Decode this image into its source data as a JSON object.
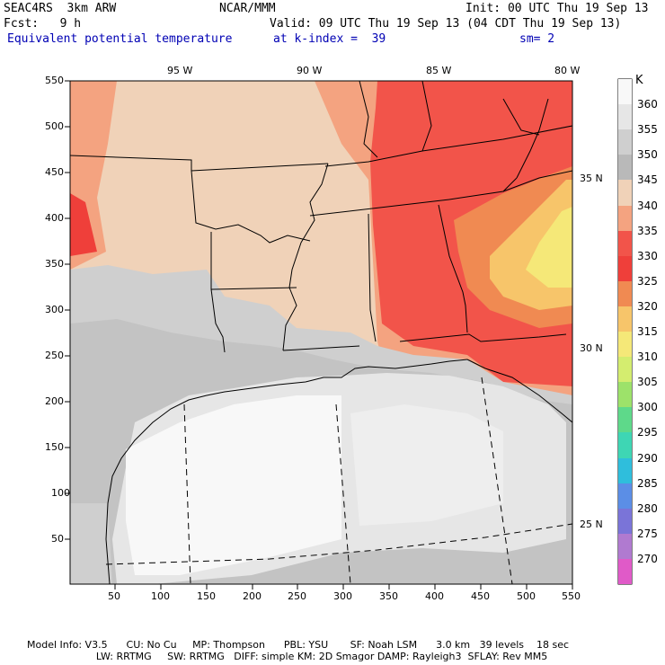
{
  "header": {
    "experiment": "SEAC4RS  3km ARW",
    "center": "NCAR/MMM",
    "init": "Init: 00 UTC Thu 19 Sep 13",
    "fcst": "Fcst:   9 h",
    "valid": "Valid: 09 UTC Thu 19 Sep 13 (04 CDT Thu 19 Sep 13)",
    "field": "Equivalent potential temperature",
    "level": "at k-index =  39",
    "smooth": "sm= 2"
  },
  "map": {
    "lon_labels": [
      "95 W",
      "90 W",
      "85 W",
      "80 W"
    ],
    "lat_labels": [
      "35 N",
      "30 N",
      "25 N"
    ],
    "x_ticks": [
      "50",
      "100",
      "150",
      "200",
      "250",
      "300",
      "350",
      "400",
      "450",
      "500",
      "550"
    ],
    "y_ticks": [
      "550",
      "500",
      "450",
      "400",
      "350",
      "300",
      "250",
      "200",
      "150",
      "100",
      "50"
    ]
  },
  "legend": {
    "unit": "K",
    "levels": [
      "360",
      "355",
      "350",
      "345",
      "340",
      "335",
      "330",
      "325",
      "320",
      "315",
      "310",
      "305",
      "300",
      "295",
      "290",
      "285",
      "280",
      "275",
      "270"
    ],
    "colors": [
      "#f8f8f8",
      "#e6e6e6",
      "#cfcfcf",
      "#b9b9b9",
      "#f0d2b8",
      "#f4a380",
      "#f2544a",
      "#ef3f3a",
      "#f08a52",
      "#f7c56a",
      "#f5e878",
      "#d4ed6f",
      "#9de26a",
      "#5ed98a",
      "#3ed6b4",
      "#2fbedc",
      "#5b8ee6",
      "#7a74d8",
      "#b07ad0",
      "#e05ac8"
    ]
  },
  "footer": {
    "line1": "Model Info: V3.5      CU: No Cu     MP: Thompson      PBL: YSU       SF: Noah LSM      3.0 km   39 levels    18 sec",
    "line2": "                      LW: RRTMG     SW: RRTMG   DIFF: simple KM: 2D Smagor DAMP: Rayleigh3  SFLAY: Rev MM5"
  }
}
